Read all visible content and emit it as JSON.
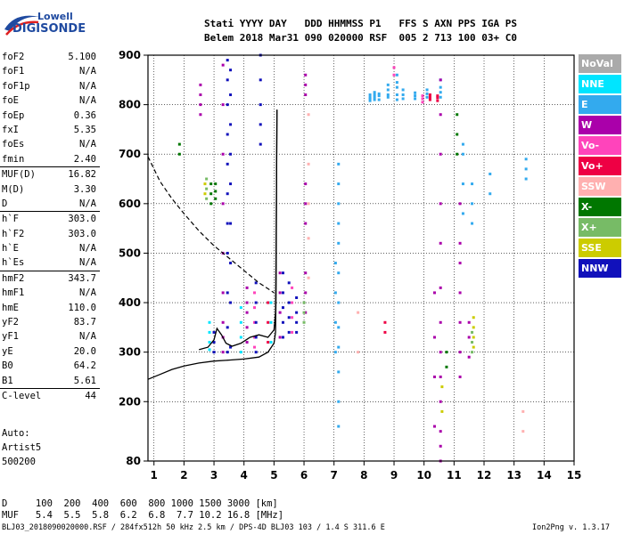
{
  "logo": {
    "top": "Lowell",
    "main": "DIGISONDE"
  },
  "header": {
    "line1": "Stati YYYY DAY   DDD HHMMSS P1   FFS S AXN PPS IGA PS",
    "line2": "Belem 2018 Mar31 090 020000 RSF  005 2 713 100 03+ C0"
  },
  "params": [
    {
      "label": "foF2",
      "value": "5.100"
    },
    {
      "label": "foF1",
      "value": "N/A"
    },
    {
      "label": "foF1p",
      "value": "N/A"
    },
    {
      "label": "foE",
      "value": "N/A"
    },
    {
      "label": "foEp",
      "value": "0.36"
    },
    {
      "label": "fxI",
      "value": "5.35"
    },
    {
      "label": "foEs",
      "value": "N/A"
    },
    {
      "label": "fmin",
      "value": "2.40"
    },
    {
      "label": "MUF(D)",
      "value": "16.82",
      "sep": true
    },
    {
      "label": "M(D)",
      "value": "3.30"
    },
    {
      "label": "D",
      "value": "N/A"
    },
    {
      "label": "h`F",
      "value": "303.0",
      "sep": true
    },
    {
      "label": "h`F2",
      "value": "303.0"
    },
    {
      "label": "h`E",
      "value": "N/A"
    },
    {
      "label": "h`Es",
      "value": "N/A"
    },
    {
      "label": "hmF2",
      "value": "343.7",
      "sep": true
    },
    {
      "label": "hmF1",
      "value": "N/A"
    },
    {
      "label": "hmE",
      "value": "110.0"
    },
    {
      "label": "yF2",
      "value": "83.7"
    },
    {
      "label": "yF1",
      "value": "N/A"
    },
    {
      "label": "yE",
      "value": "20.0"
    },
    {
      "label": "B0",
      "value": "64.2"
    },
    {
      "label": "B1",
      "value": "5.61"
    },
    {
      "label": "C-level",
      "value": "44",
      "sep": true
    }
  ],
  "auto": {
    "title": "Auto:",
    "line2": "Artist5",
    "line3": "500200"
  },
  "legend": [
    {
      "label": "NoVal",
      "color": "#aaaaaa"
    },
    {
      "label": "NNE",
      "color": "#00e5ff"
    },
    {
      "label": "E",
      "color": "#33aaee"
    },
    {
      "label": "W",
      "color": "#aa00aa"
    },
    {
      "label": "Vo-",
      "color": "#ff44bb"
    },
    {
      "label": "Vo+",
      "color": "#ee0044"
    },
    {
      "label": "SSW",
      "color": "#ffb0b0"
    },
    {
      "label": "X-",
      "color": "#007700"
    },
    {
      "label": "X+",
      "color": "#77bb66"
    },
    {
      "label": "SSE",
      "color": "#cccc00"
    },
    {
      "label": "NNW",
      "color": "#1111bb"
    }
  ],
  "footer": {
    "d_row": "D     100  200  400  600  800 1000 1500 3000 [km]",
    "muf_row": "MUF   5.4  5.5  5.8  6.2  6.8  7.7 10.2 16.8 [MHz]",
    "file_info": "BLJ03_2018090020000.RSF / 284fx512h 50 kHz 2.5 km / DPS-4D BLJ03 103 / 1.4 S 311.6 E",
    "version": "Ion2Png v. 1.3.17"
  },
  "chart_data": {
    "type": "scatter",
    "xlim": [
      0.8,
      15
    ],
    "ylim": [
      80,
      900
    ],
    "x_ticks": [
      1,
      2,
      3,
      4,
      5,
      6,
      7,
      8,
      9,
      10,
      11,
      12,
      13,
      14,
      15
    ],
    "y_ticks": [
      80,
      200,
      300,
      400,
      500,
      600,
      700,
      800,
      900
    ],
    "grid": true,
    "profile_solid": [
      [
        0.8,
        245
      ],
      [
        1.2,
        255
      ],
      [
        1.6,
        265
      ],
      [
        2.0,
        272
      ],
      [
        2.5,
        278
      ],
      [
        3.0,
        282
      ],
      [
        3.5,
        284
      ],
      [
        4.0,
        286
      ],
      [
        4.5,
        290
      ],
      [
        4.8,
        300
      ],
      [
        5.0,
        318
      ],
      [
        5.05,
        340
      ],
      [
        5.07,
        420
      ],
      [
        5.08,
        600
      ],
      [
        5.1,
        790
      ]
    ],
    "trace_solid": [
      [
        2.5,
        305
      ],
      [
        2.8,
        310
      ],
      [
        3.0,
        325
      ],
      [
        3.1,
        348
      ],
      [
        3.25,
        335
      ],
      [
        3.4,
        318
      ],
      [
        3.6,
        312
      ],
      [
        3.9,
        318
      ],
      [
        4.2,
        330
      ],
      [
        4.5,
        335
      ],
      [
        4.8,
        330
      ],
      [
        5.0,
        345
      ],
      [
        5.05,
        380
      ],
      [
        5.07,
        500
      ],
      [
        5.1,
        790
      ]
    ],
    "profile_dashed": [
      [
        0.8,
        695
      ],
      [
        1.2,
        645
      ],
      [
        1.6,
        610
      ],
      [
        2.0,
        580
      ],
      [
        2.5,
        545
      ],
      [
        3.0,
        515
      ],
      [
        3.5,
        490
      ],
      [
        4.0,
        465
      ],
      [
        4.5,
        440
      ],
      [
        5.0,
        420
      ]
    ],
    "scatter": [
      {
        "name": "NNE",
        "color": "#00e5ff",
        "x": 2.85,
        "y": [
          305,
          320,
          340,
          360
        ]
      },
      {
        "name": "NNE",
        "color": "#00e5ff",
        "x": 3.9,
        "y": [
          300,
          330,
          360,
          390
        ]
      },
      {
        "name": "NNE",
        "color": "#00e5ff",
        "x": 4.9,
        "y": [
          320,
          360,
          400
        ]
      },
      {
        "name": "E",
        "color": "#33aaee",
        "x": 7.15,
        "y": [
          150,
          200,
          260,
          310,
          350,
          400,
          460,
          520,
          560,
          600,
          640,
          680
        ]
      },
      {
        "name": "E",
        "color": "#33aaee",
        "x": 7.05,
        "y": [
          300,
          360,
          420,
          480
        ]
      },
      {
        "name": "E",
        "color": "#33aaee",
        "x": 8.2,
        "y": [
          808,
          812,
          815,
          820
        ]
      },
      {
        "name": "E",
        "color": "#33aaee",
        "x": 8.35,
        "y": [
          810,
          815,
          820,
          825
        ]
      },
      {
        "name": "E",
        "color": "#33aaee",
        "x": 8.5,
        "y": [
          810,
          818,
          822
        ]
      },
      {
        "name": "E",
        "color": "#33aaee",
        "x": 8.8,
        "y": [
          815,
          820,
          830,
          840
        ]
      },
      {
        "name": "E",
        "color": "#33aaee",
        "x": 9.1,
        "y": [
          810,
          820,
          835,
          845,
          860
        ]
      },
      {
        "name": "E",
        "color": "#33aaee",
        "x": 9.3,
        "y": [
          812,
          820,
          830
        ]
      },
      {
        "name": "E",
        "color": "#33aaee",
        "x": 9.7,
        "y": [
          812,
          818,
          824
        ]
      },
      {
        "name": "E",
        "color": "#33aaee",
        "x": 10.1,
        "y": [
          815,
          822,
          830
        ]
      },
      {
        "name": "E",
        "color": "#33aaee",
        "x": 10.55,
        "y": [
          815,
          825,
          835,
          850
        ]
      },
      {
        "name": "E",
        "color": "#33aaee",
        "x": 11.3,
        "y": [
          580,
          640,
          700,
          720
        ]
      },
      {
        "name": "E",
        "color": "#33aaee",
        "x": 11.6,
        "y": [
          560,
          600,
          640
        ]
      },
      {
        "name": "E",
        "color": "#33aaee",
        "x": 12.2,
        "y": [
          620,
          660
        ]
      },
      {
        "name": "E",
        "color": "#33aaee",
        "x": 13.4,
        "y": [
          650,
          670,
          690
        ]
      },
      {
        "name": "W",
        "color": "#aa00aa",
        "x": 2.55,
        "y": [
          780,
          800,
          820,
          840
        ]
      },
      {
        "name": "W",
        "color": "#aa00aa",
        "x": 3.3,
        "y": [
          300,
          330,
          360,
          420,
          500,
          600,
          700,
          800,
          880
        ]
      },
      {
        "name": "W",
        "color": "#aa00aa",
        "x": 4.1,
        "y": [
          320,
          350,
          380,
          400,
          430
        ]
      },
      {
        "name": "W",
        "color": "#aa00aa",
        "x": 5.2,
        "y": [
          330,
          380,
          420,
          460
        ]
      },
      {
        "name": "W",
        "color": "#aa00aa",
        "x": 6.05,
        "y": [
          380,
          420,
          460,
          560,
          600,
          640,
          820,
          840,
          860
        ]
      },
      {
        "name": "W",
        "color": "#aa00aa",
        "x": 10.55,
        "y": [
          80,
          110,
          140,
          200,
          250,
          300,
          360,
          430,
          520,
          600,
          700,
          780,
          850
        ]
      },
      {
        "name": "W",
        "color": "#aa00aa",
        "x": 10.35,
        "y": [
          150,
          250,
          330,
          420
        ]
      },
      {
        "name": "W",
        "color": "#aa00aa",
        "x": 11.2,
        "y": [
          250,
          300,
          360,
          420,
          480,
          520,
          600
        ]
      },
      {
        "name": "W",
        "color": "#aa00aa",
        "x": 11.5,
        "y": [
          290,
          330,
          360
        ]
      },
      {
        "name": "Vo-",
        "color": "#ff44bb",
        "x": 4.35,
        "y": [
          310,
          330,
          360,
          390,
          420
        ]
      },
      {
        "name": "Vo-",
        "color": "#ff44bb",
        "x": 5.6,
        "y": [
          340,
          370,
          400,
          430
        ]
      },
      {
        "name": "Vo-",
        "color": "#ff44bb",
        "x": 9.95,
        "y": [
          805,
          812,
          818
        ]
      },
      {
        "name": "Vo-",
        "color": "#ff44bb",
        "x": 9.0,
        "y": [
          860,
          875
        ]
      },
      {
        "name": "Vo+",
        "color": "#ee0044",
        "x": 4.8,
        "y": [
          320,
          360,
          400
        ]
      },
      {
        "name": "Vo+",
        "color": "#ee0044",
        "x": 10.2,
        "y": [
          810,
          815,
          820
        ]
      },
      {
        "name": "Vo+",
        "color": "#ee0044",
        "x": 10.45,
        "y": [
          808,
          814,
          818
        ]
      },
      {
        "name": "Vo+",
        "color": "#ee0044",
        "x": 8.7,
        "y": [
          340,
          360
        ]
      },
      {
        "name": "SSW",
        "color": "#ffb0b0",
        "x": 6.15,
        "y": [
          450,
          530,
          600,
          680,
          780
        ]
      },
      {
        "name": "SSW",
        "color": "#ffb0b0",
        "x": 7.8,
        "y": [
          300,
          380
        ]
      },
      {
        "name": "SSW",
        "color": "#ffb0b0",
        "x": 13.3,
        "y": [
          140,
          180
        ]
      },
      {
        "name": "X-",
        "color": "#007700",
        "x": 2.9,
        "y": [
          600,
          620,
          640
        ]
      },
      {
        "name": "X-",
        "color": "#007700",
        "x": 3.05,
        "y": [
          610,
          625,
          640
        ]
      },
      {
        "name": "X-",
        "color": "#007700",
        "x": 11.1,
        "y": [
          700,
          740,
          780
        ]
      },
      {
        "name": "X-",
        "color": "#007700",
        "x": 10.75,
        "y": [
          270,
          300
        ]
      },
      {
        "name": "X-",
        "color": "#007700",
        "x": 1.85,
        "y": [
          700,
          720
        ]
      },
      {
        "name": "X+",
        "color": "#77bb66",
        "x": 2.75,
        "y": [
          610,
          630,
          650
        ]
      },
      {
        "name": "X+",
        "color": "#77bb66",
        "x": 6.0,
        "y": [
          360,
          380,
          400
        ]
      },
      {
        "name": "X+",
        "color": "#77bb66",
        "x": 11.6,
        "y": [
          300,
          320,
          340
        ]
      },
      {
        "name": "SSE",
        "color": "#cccc00",
        "x": 11.65,
        "y": [
          310,
          330,
          350,
          370
        ]
      },
      {
        "name": "SSE",
        "color": "#cccc00",
        "x": 10.6,
        "y": [
          180,
          230
        ]
      },
      {
        "name": "SSE",
        "color": "#cccc00",
        "x": 2.7,
        "y": [
          620,
          640
        ]
      },
      {
        "name": "NNW",
        "color": "#1111bb",
        "x": 3.45,
        "y": [
          300,
          350,
          420,
          500,
          560,
          620,
          680,
          740,
          800,
          850,
          890
        ]
      },
      {
        "name": "NNW",
        "color": "#1111bb",
        "x": 3.55,
        "y": [
          310,
          400,
          480,
          560,
          640,
          700,
          760,
          820,
          870
        ]
      },
      {
        "name": "NNW",
        "color": "#1111bb",
        "x": 3.0,
        "y": [
          300,
          320,
          340
        ]
      },
      {
        "name": "NNW",
        "color": "#1111bb",
        "x": 4.4,
        "y": [
          300,
          330,
          360,
          400,
          440
        ]
      },
      {
        "name": "NNW",
        "color": "#1111bb",
        "x": 5.3,
        "y": [
          330,
          360,
          390,
          420,
          460
        ]
      },
      {
        "name": "NNW",
        "color": "#1111bb",
        "x": 5.5,
        "y": [
          340,
          370,
          400,
          440
        ]
      },
      {
        "name": "NNW",
        "color": "#1111bb",
        "x": 5.75,
        "y": [
          340,
          360,
          380,
          410
        ]
      },
      {
        "name": "NNW",
        "color": "#1111bb",
        "x": 4.55,
        "y": [
          720,
          760,
          800,
          850,
          900
        ]
      }
    ]
  }
}
